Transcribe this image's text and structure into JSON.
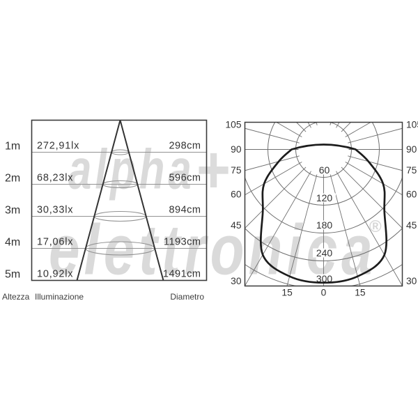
{
  "watermark": {
    "line1": "alpha",
    "symbol": "+",
    "line2": "elettronica",
    "registered": "®"
  },
  "chart_data": [
    {
      "type": "table",
      "name": "illumination-cone",
      "columns": [
        "Altezza",
        "Illuminazione",
        "Diametro"
      ],
      "rows": [
        {
          "height": "1m",
          "lux": "272,91lx",
          "diameter": "298cm"
        },
        {
          "height": "2m",
          "lux": "68,23lx",
          "diameter": "596cm"
        },
        {
          "height": "3m",
          "lux": "30,33lx",
          "diameter": "894cm"
        },
        {
          "height": "4m",
          "lux": "17,06lx",
          "diameter": "1193cm"
        },
        {
          "height": "5m",
          "lux": "10,92lx",
          "diameter": "1491cm"
        }
      ]
    },
    {
      "type": "line",
      "name": "polar-photometric-curve",
      "side_angle_labels": [
        "105",
        "90",
        "75",
        "60",
        "45",
        "30"
      ],
      "bottom_angle_labels": [
        "15",
        "0",
        "15"
      ],
      "radial_tick_labels": [
        "60",
        "120",
        "180",
        "240",
        "300"
      ],
      "radial_ticks": [
        60,
        120,
        180,
        240,
        300
      ],
      "angle_grid_step_deg": 15,
      "series": [
        {
          "name": "luminous-intensity",
          "angles_deg": [
            -90,
            -75,
            -60,
            -45,
            -30,
            -15,
            0,
            15,
            30,
            45,
            60,
            75,
            90
          ],
          "intensity": [
            69,
            100,
            148,
            185,
            262,
            283,
            287,
            283,
            262,
            185,
            148,
            100,
            69
          ]
        }
      ]
    }
  ],
  "colors": {
    "background": "#ffffff",
    "frame": "#3a3a3a",
    "cone_line": "#333333",
    "level_line": "#929292",
    "polar_grid": "#6f6f6f",
    "curve": "#1c1c1c",
    "text": "#333333",
    "watermark": "#dadada"
  }
}
